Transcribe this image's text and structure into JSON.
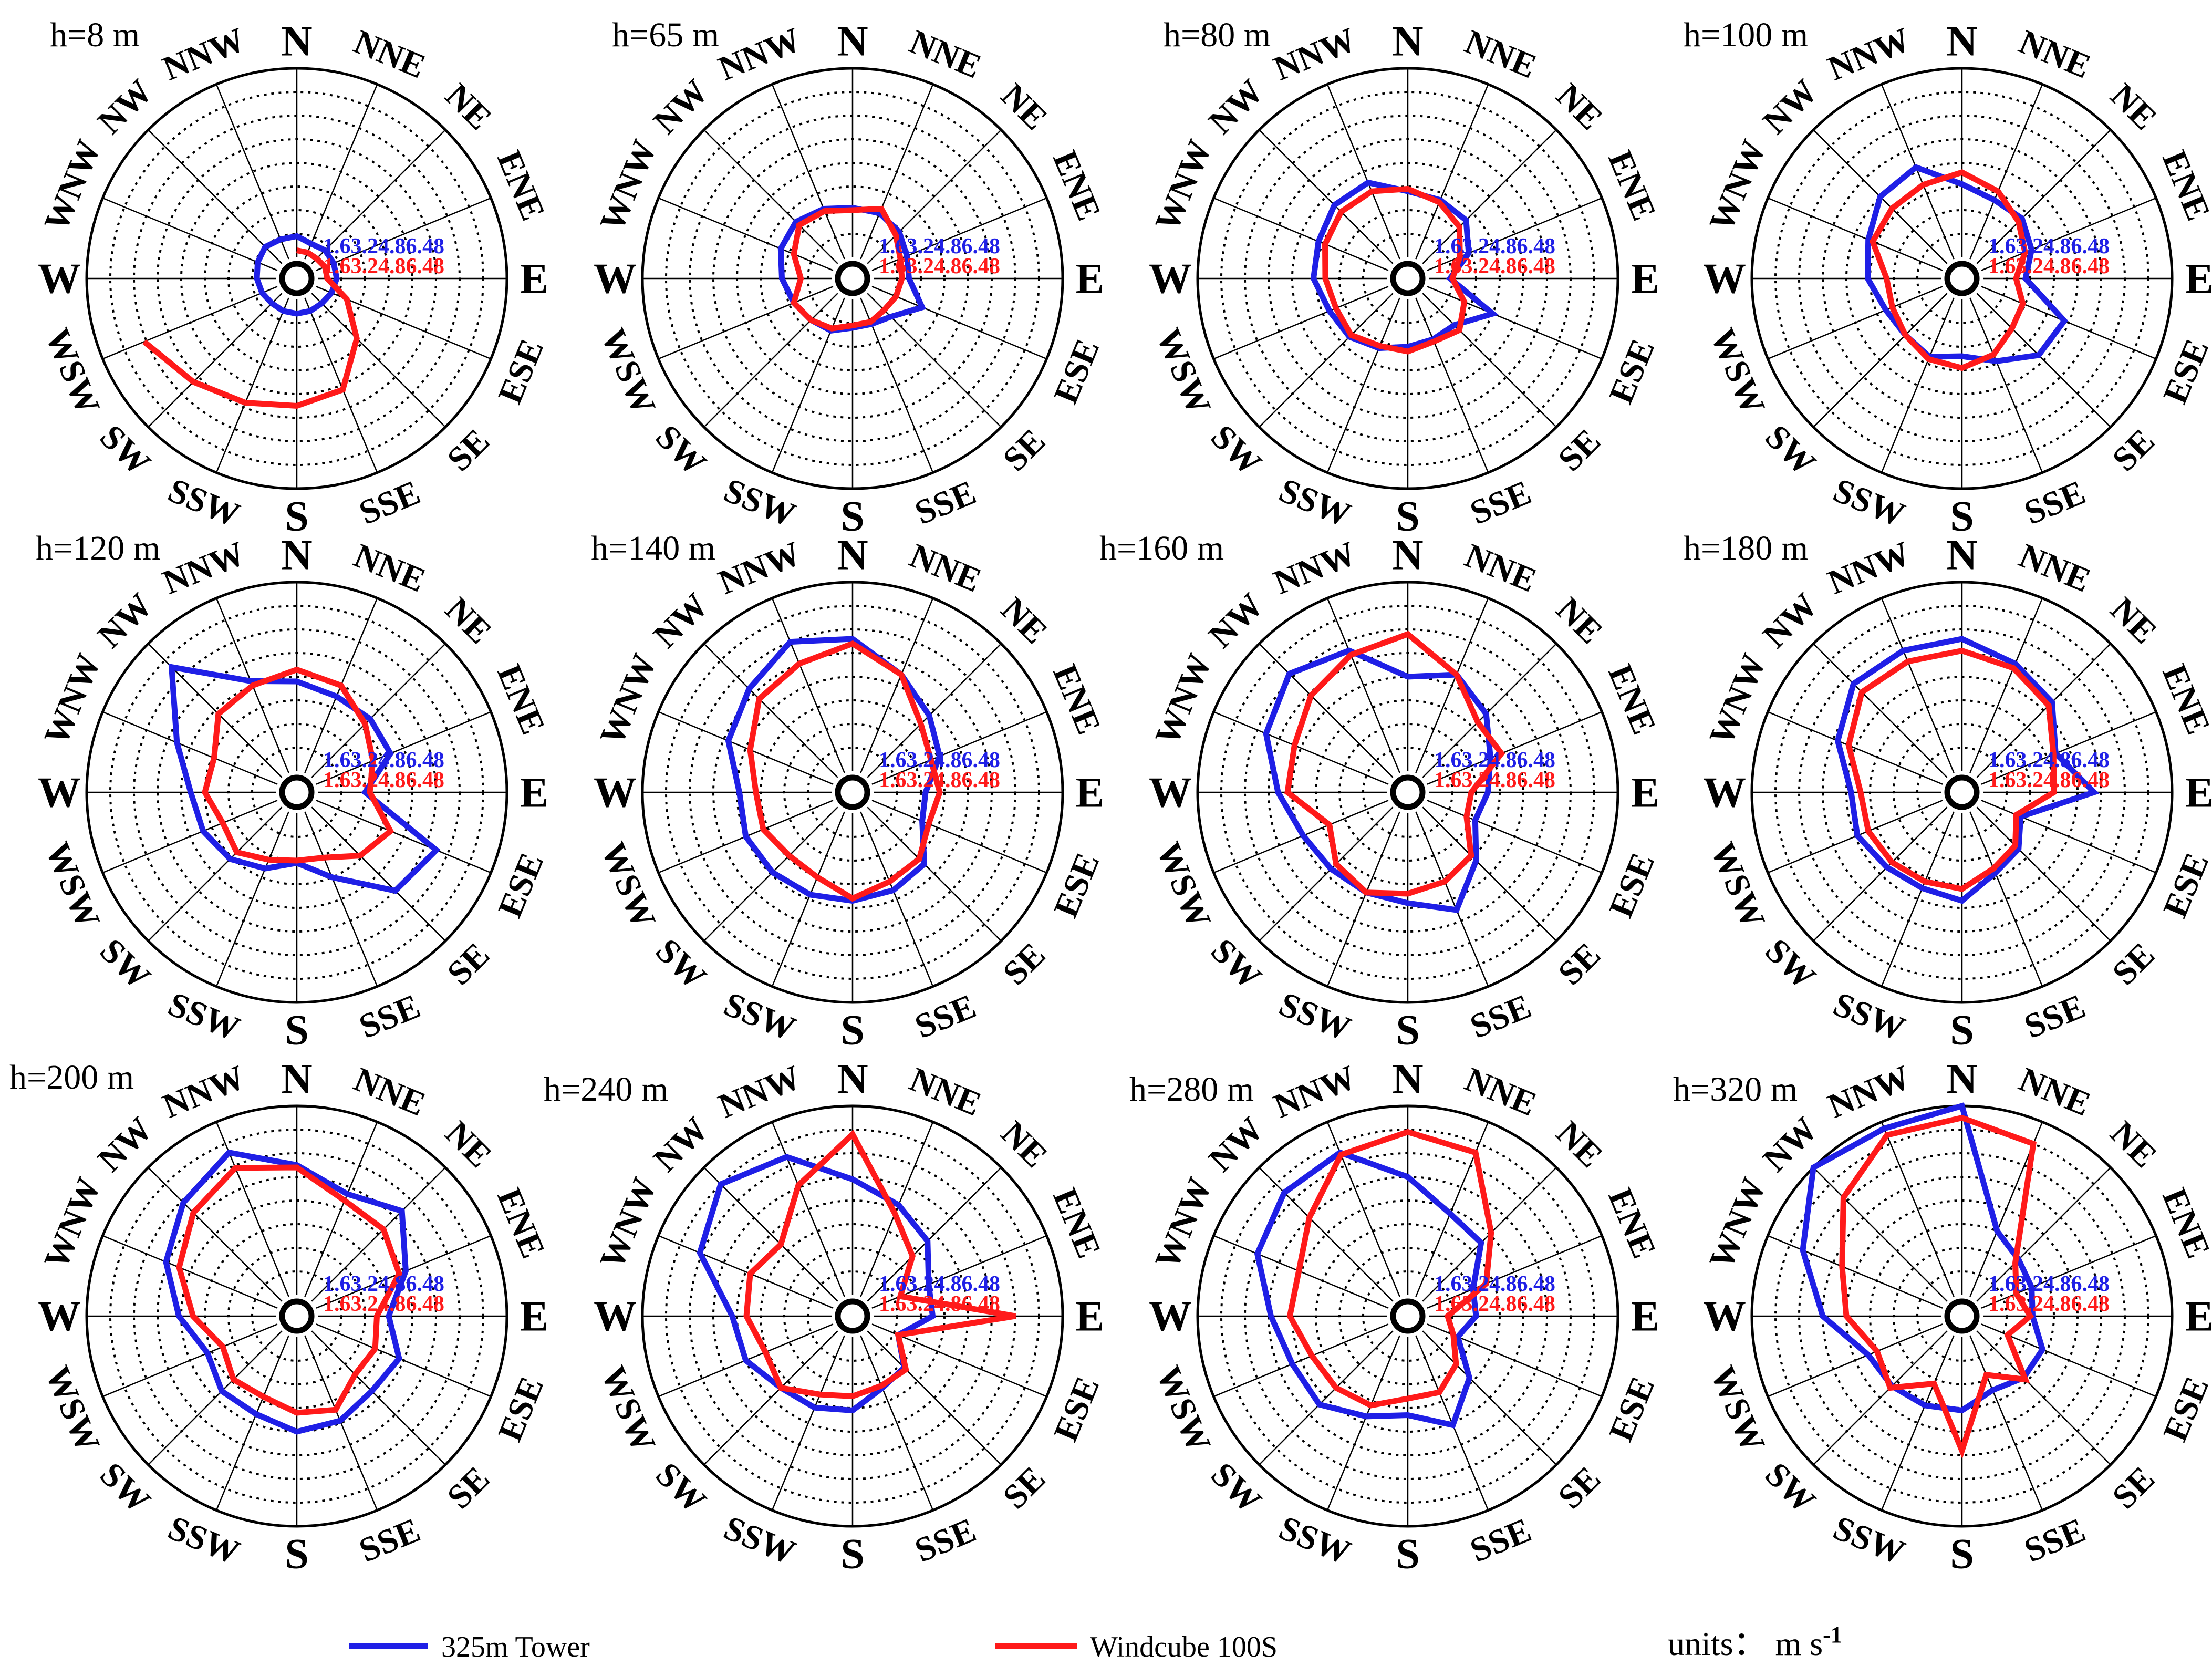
{
  "chart_data": {
    "type": "polar-line",
    "directions": [
      "N",
      "NNE",
      "NE",
      "ENE",
      "E",
      "ESE",
      "SE",
      "SSE",
      "S",
      "SSW",
      "SW",
      "WSW",
      "W",
      "WNW",
      "NW",
      "NNW"
    ],
    "radial_ticks": [
      "1.6",
      "3.2",
      "4.8",
      "6.4",
      "8"
    ],
    "radial_tick_text": "1.63.24.86.48",
    "rmax": 8,
    "series_names": [
      "325m Tower",
      "Windcube 100S"
    ],
    "colors": {
      "tower": "#1f1fe6",
      "windcube": "#ff1a1a"
    },
    "legend": {
      "tower": "325m Tower",
      "windcube": "Windcube 100S"
    },
    "units": {
      "prefix": "units：  m s",
      "superscript": "-1"
    },
    "panels": [
      {
        "title": "h=8 m",
        "tower": [
          0.9,
          0.7,
          0.8,
          0.8,
          0.8,
          0.7,
          0.6,
          0.6,
          0.6,
          0.6,
          0.6,
          0.7,
          0.8,
          0.9,
          1.0,
          0.9
        ],
        "windcube": [
          0.3,
          0.3,
          0.3,
          0.4,
          0.4,
          1.4,
          2.7,
          4.2,
          4.5,
          4.8,
          5.3,
          6.1,
          null,
          null,
          null,
          null
        ]
      },
      {
        "title": "h=65 m",
        "tower": [
          2.1,
          2.1,
          1.9,
          1.6,
          1.5,
          2.3,
          1.4,
          1.2,
          1.2,
          1.5,
          1.6,
          1.8,
          2.1,
          2.4,
          2.5,
          2.3
        ],
        "windcube": [
          2.0,
          2.3,
          1.7,
          1.3,
          1.2,
          1.1,
          1.0,
          1.1,
          1.1,
          1.4,
          1.6,
          1.8,
          1.3,
          1.8,
          2.3,
          2.2
        ]
      },
      {
        "title": "h=80 m",
        "tower": [
          2.8,
          2.7,
          2.6,
          1.9,
          0.9,
          3.0,
          1.9,
          1.9,
          2.0,
          2.3,
          2.6,
          2.7,
          3.1,
          3.2,
          3.5,
          3.5
        ],
        "windcube": [
          2.9,
          2.6,
          2.2,
          1.5,
          1.0,
          1.7,
          2.2,
          2.0,
          2.2,
          2.2,
          2.5,
          2.4,
          2.6,
          2.9,
          3.1,
          3.1
        ]
      },
      {
        "title": "h=100 m",
        "tower": [
          3.1,
          2.7,
          2.7,
          2.3,
          1.8,
          3.8,
          3.7,
          2.9,
          2.4,
          2.7,
          2.5,
          2.6,
          3.1,
          3.4,
          4.0,
          4.2
        ],
        "windcube": [
          3.6,
          3.1,
          2.5,
          2.0,
          1.4,
          1.9,
          2.1,
          2.6,
          2.9,
          2.8,
          2.5,
          2.3,
          2.3,
          3.2,
          3.3,
          3.4
        ]
      },
      {
        "title": "h=120 m",
        "tower": [
          3.8,
          3.5,
          3.5,
          3.4,
          2.0,
          5.5,
          5.0,
          3.0,
          2.1,
          2.6,
          3.1,
          3.4,
          3.6,
          4.6,
          6.6,
          4.2
        ],
        "windcube": [
          4.3,
          4.0,
          3.2,
          2.6,
          2.2,
          3.4,
          2.9,
          2.1,
          2.0,
          2.2,
          2.7,
          2.5,
          3.0,
          2.9,
          3.8,
          4.0
        ]
      },
      {
        "title": "h=140 m",
        "tower": [
          5.6,
          4.5,
          3.7,
          3.1,
          2.2,
          2.3,
          3.4,
          3.6,
          3.7,
          3.8,
          3.9,
          4.0,
          3.9,
          4.8,
          5.3,
          6.0
        ],
        "windcube": [
          5.4,
          4.5,
          3.2,
          2.7,
          2.8,
          2.6,
          3.1,
          3.2,
          3.6,
          3.0,
          2.9,
          3.2,
          3.2,
          3.8,
          4.7,
          5.0
        ]
      },
      {
        "title": "h=160 m",
        "tower": [
          4.0,
          4.5,
          3.8,
          2.9,
          2.5,
          2.2,
          3.2,
          4.5,
          3.8,
          3.7,
          3.7,
          3.9,
          4.6,
          5.6,
          6.2,
          5.6
        ],
        "windcube": [
          5.8,
          4.5,
          3.3,
          3.4,
          1.8,
          1.8,
          2.9,
          3.2,
          3.4,
          3.7,
          3.4,
          2.7,
          4.2,
          4.3,
          4.9,
          5.4
        ]
      },
      {
        "title": "h=180 m",
        "tower": [
          5.6,
          5.0,
          4.5,
          3.4,
          4.7,
          1.8,
          2.5,
          2.8,
          3.7,
          3.5,
          3.6,
          3.9,
          3.8,
          4.8,
          5.6,
          5.6
        ],
        "windcube": [
          5.1,
          4.8,
          4.3,
          3.3,
          3.0,
          1.6,
          2.3,
          2.6,
          3.2,
          3.2,
          3.3,
          3.4,
          3.4,
          4.3,
          5.1,
          5.1
        ]
      },
      {
        "title": "h=200 m",
        "tower": [
          5.5,
          4.7,
          5.4,
          4.1,
          3.0,
          3.8,
          3.6,
          3.9,
          4.0,
          3.6,
          3.6,
          3.2,
          4.1,
          5.1,
          5.9,
          6.6
        ],
        "windcube": [
          5.4,
          4.4,
          4.3,
          3.8,
          2.5,
          2.7,
          2.6,
          3.4,
          3.2,
          2.8,
          2.9,
          2.5,
          3.5,
          4.5,
          5.3,
          5.9
        ]
      },
      {
        "title": "h=240 m",
        "tower": [
          4.9,
          4.2,
          3.6,
          2.6,
          2.5,
          1.2,
          2.2,
          2.4,
          3.1,
          3.3,
          3.4,
          4.0,
          4.2,
          6.1,
          7.0,
          6.4
        ],
        "windcube": [
          6.8,
          3.8,
          2.7,
          1.3,
          6.0,
          1.2,
          2.3,
          2.3,
          2.5,
          2.7,
          3.4,
          3.1,
          3.6,
          3.8,
          3.4,
          5.1
        ]
      },
      {
        "title": "h=280 m",
        "tower": [
          5.0,
          3.8,
          3.5,
          2.1,
          2.0,
          1.4,
          2.8,
          4.1,
          3.3,
          3.7,
          4.4,
          4.4,
          4.9,
          6.0,
          6.5,
          6.6
        ],
        "windcube": [
          6.9,
          6.6,
          4.1,
          2.7,
          0.8,
          1.2,
          2.0,
          2.6,
          2.6,
          3.2,
          3.4,
          3.5,
          4.1,
          4.1,
          5.0,
          6.5
        ]
      },
      {
        "title": "h=320 m",
        "tower": [
          8.0,
          3.0,
          2.5,
          2.3,
          2.1,
          2.8,
          2.8,
          2.5,
          3.1,
          3.2,
          3.3,
          3.4,
          5.0,
          6.4,
          8.0,
          7.7
        ],
        "windcube": [
          7.5,
          7.0,
          2.3,
          1.6,
          2.0,
          1.2,
          2.9,
          1.8,
          4.8,
          2.2,
          3.4,
          3.0,
          4.0,
          4.6,
          6.2,
          7.4
        ]
      }
    ]
  }
}
